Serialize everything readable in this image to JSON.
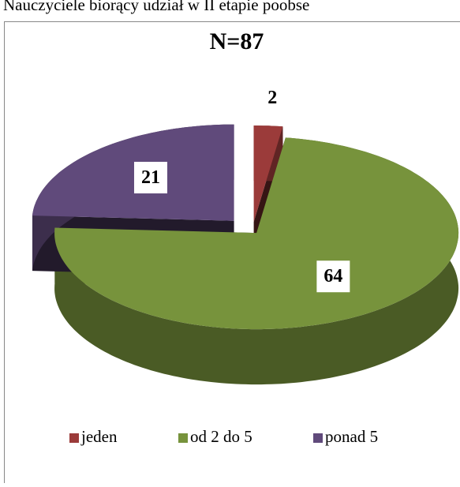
{
  "caption": "Nauczyciele biorący udział w II etapie  poobse",
  "chart_data": {
    "type": "pie",
    "title": "N=87",
    "categories": [
      "jeden",
      "od 2 do 5",
      "ponad 5"
    ],
    "values": [
      2,
      64,
      21
    ],
    "colors": [
      "#9b3b3a",
      "#77933c",
      "#604a7b"
    ],
    "legend": "bottom"
  }
}
